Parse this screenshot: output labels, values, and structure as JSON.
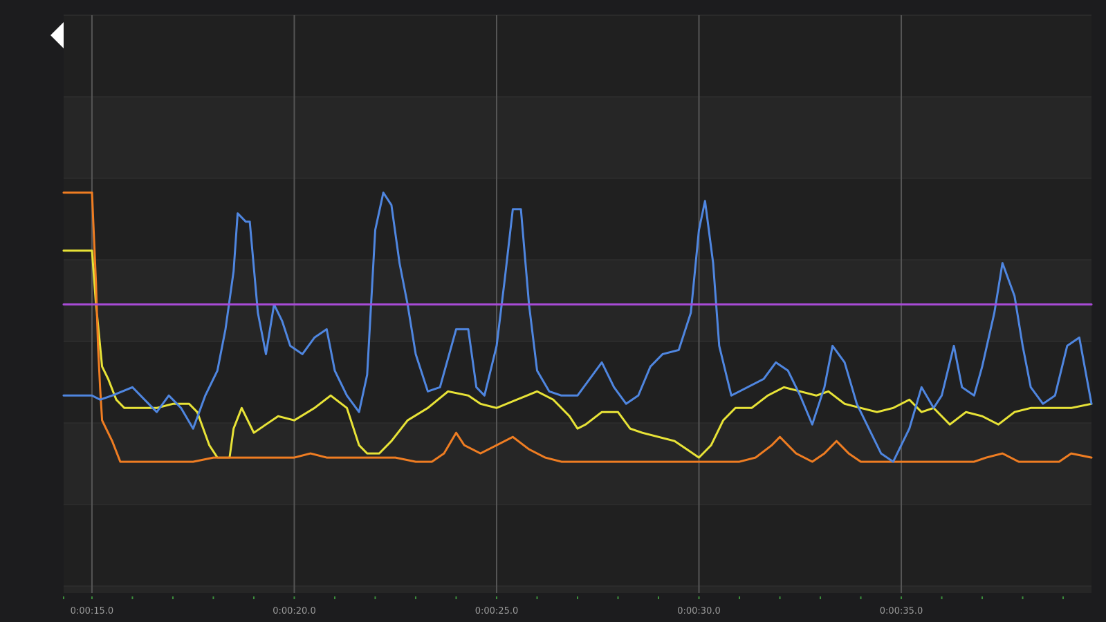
{
  "app": {
    "back_icon": "back-arrow-icon"
  },
  "colors": {
    "background": "#1c1c1e",
    "plot_band_dark": "#202020",
    "plot_band_light": "#262626",
    "vertical_grid": "#555555",
    "horizontal_grid": "#333333",
    "minor_tick": "#3c8f3c",
    "icon": "#ffffff"
  },
  "chart_data": {
    "type": "line",
    "title": "",
    "xlabel": "",
    "ylabel": "",
    "x_unit": "seconds",
    "xlim": [
      14.3,
      39.7
    ],
    "ylim": [
      0,
      100
    ],
    "grid": true,
    "legend": "none",
    "x_ticks": [
      {
        "value": 15,
        "label": "0:00:15.0"
      },
      {
        "value": 20,
        "label": "0:00:20.0"
      },
      {
        "value": 25,
        "label": "0:00:25.0"
      },
      {
        "value": 30,
        "label": "0:00:30.0"
      },
      {
        "value": 35,
        "label": "0:00:35.0"
      }
    ],
    "minor_ticks": [
      14.3,
      15,
      16,
      17,
      18,
      19,
      20,
      21,
      22,
      23,
      24,
      25,
      26,
      27,
      28,
      29,
      30,
      31,
      32,
      33,
      34,
      35,
      36,
      37,
      38,
      39
    ],
    "series": [
      {
        "color": "#e8e337",
        "points": [
          [
            14.3,
            63
          ],
          [
            15.0,
            63
          ],
          [
            15.1,
            50
          ],
          [
            15.2,
            40
          ],
          [
            15.25,
            35
          ],
          [
            15.4,
            32
          ],
          [
            15.6,
            27
          ],
          [
            15.8,
            25
          ],
          [
            16.2,
            25
          ],
          [
            16.6,
            25
          ],
          [
            17.0,
            26
          ],
          [
            17.4,
            26
          ],
          [
            17.6,
            24
          ],
          [
            17.9,
            16
          ],
          [
            18.1,
            13
          ],
          [
            18.4,
            13
          ],
          [
            18.5,
            20
          ],
          [
            18.7,
            25
          ],
          [
            19.0,
            19
          ],
          [
            19.3,
            21
          ],
          [
            19.6,
            23
          ],
          [
            20.0,
            22
          ],
          [
            20.5,
            25
          ],
          [
            20.9,
            28
          ],
          [
            21.3,
            25
          ],
          [
            21.6,
            16
          ],
          [
            21.8,
            14
          ],
          [
            22.1,
            14
          ],
          [
            22.4,
            17
          ],
          [
            22.8,
            22
          ],
          [
            23.3,
            25
          ],
          [
            23.8,
            29
          ],
          [
            24.3,
            28
          ],
          [
            24.6,
            26
          ],
          [
            25.0,
            25
          ],
          [
            25.5,
            27
          ],
          [
            26.0,
            29
          ],
          [
            26.4,
            27
          ],
          [
            26.8,
            23
          ],
          [
            27.0,
            20
          ],
          [
            27.2,
            21
          ],
          [
            27.6,
            24
          ],
          [
            28.0,
            24
          ],
          [
            28.3,
            20
          ],
          [
            28.6,
            19
          ],
          [
            29.0,
            18
          ],
          [
            29.4,
            17
          ],
          [
            29.7,
            15
          ],
          [
            30.0,
            13
          ],
          [
            30.3,
            16
          ],
          [
            30.6,
            22
          ],
          [
            30.9,
            25
          ],
          [
            31.3,
            25
          ],
          [
            31.7,
            28
          ],
          [
            32.1,
            30
          ],
          [
            32.5,
            29
          ],
          [
            32.9,
            28
          ],
          [
            33.2,
            29
          ],
          [
            33.6,
            26
          ],
          [
            34.0,
            25
          ],
          [
            34.4,
            24
          ],
          [
            34.8,
            25
          ],
          [
            35.2,
            27
          ],
          [
            35.5,
            24
          ],
          [
            35.8,
            25
          ],
          [
            36.2,
            21
          ],
          [
            36.6,
            24
          ],
          [
            37.0,
            23
          ],
          [
            37.4,
            21
          ],
          [
            37.8,
            24
          ],
          [
            38.2,
            25
          ],
          [
            38.7,
            25
          ],
          [
            39.2,
            25
          ],
          [
            39.7,
            26
          ]
        ]
      },
      {
        "color": "#ef7d22",
        "points": [
          [
            14.3,
            77
          ],
          [
            15.0,
            77
          ],
          [
            15.1,
            55
          ],
          [
            15.15,
            40
          ],
          [
            15.2,
            30
          ],
          [
            15.25,
            22
          ],
          [
            15.35,
            20
          ],
          [
            15.5,
            17
          ],
          [
            15.7,
            12
          ],
          [
            16.0,
            12
          ],
          [
            16.5,
            12
          ],
          [
            17.0,
            12
          ],
          [
            17.5,
            12
          ],
          [
            18.0,
            13
          ],
          [
            18.5,
            13
          ],
          [
            19.0,
            13
          ],
          [
            19.5,
            13
          ],
          [
            20.0,
            13
          ],
          [
            20.4,
            14
          ],
          [
            20.8,
            13
          ],
          [
            21.2,
            13
          ],
          [
            21.6,
            13
          ],
          [
            22.0,
            13
          ],
          [
            22.5,
            13
          ],
          [
            23.0,
            12
          ],
          [
            23.4,
            12
          ],
          [
            23.7,
            14
          ],
          [
            24.0,
            19
          ],
          [
            24.2,
            16
          ],
          [
            24.6,
            14
          ],
          [
            25.0,
            16
          ],
          [
            25.4,
            18
          ],
          [
            25.8,
            15
          ],
          [
            26.2,
            13
          ],
          [
            26.6,
            12
          ],
          [
            27.0,
            12
          ],
          [
            27.5,
            12
          ],
          [
            28.0,
            12
          ],
          [
            28.5,
            12
          ],
          [
            29.0,
            12
          ],
          [
            29.5,
            12
          ],
          [
            30.0,
            12
          ],
          [
            30.5,
            12
          ],
          [
            31.0,
            12
          ],
          [
            31.4,
            13
          ],
          [
            31.8,
            16
          ],
          [
            32.0,
            18
          ],
          [
            32.4,
            14
          ],
          [
            32.8,
            12
          ],
          [
            33.1,
            14
          ],
          [
            33.4,
            17
          ],
          [
            33.7,
            14
          ],
          [
            34.0,
            12
          ],
          [
            34.5,
            12
          ],
          [
            35.0,
            12
          ],
          [
            35.5,
            12
          ],
          [
            36.0,
            12
          ],
          [
            36.5,
            12
          ],
          [
            36.8,
            12
          ],
          [
            37.1,
            13
          ],
          [
            37.5,
            14
          ],
          [
            37.9,
            12
          ],
          [
            38.3,
            12
          ],
          [
            38.6,
            12
          ],
          [
            38.9,
            12
          ],
          [
            39.2,
            14
          ],
          [
            39.7,
            13
          ]
        ]
      },
      {
        "color": "#4f86e0",
        "points": [
          [
            14.3,
            28
          ],
          [
            15.0,
            28
          ],
          [
            15.2,
            27
          ],
          [
            15.5,
            28
          ],
          [
            16.0,
            30
          ],
          [
            16.3,
            27
          ],
          [
            16.6,
            24
          ],
          [
            16.9,
            28
          ],
          [
            17.2,
            25
          ],
          [
            17.5,
            20
          ],
          [
            17.8,
            28
          ],
          [
            18.1,
            34
          ],
          [
            18.3,
            44
          ],
          [
            18.5,
            58
          ],
          [
            18.6,
            72
          ],
          [
            18.8,
            70
          ],
          [
            18.9,
            70
          ],
          [
            19.1,
            48
          ],
          [
            19.3,
            38
          ],
          [
            19.5,
            50
          ],
          [
            19.7,
            46
          ],
          [
            19.9,
            40
          ],
          [
            20.2,
            38
          ],
          [
            20.5,
            42
          ],
          [
            20.8,
            44
          ],
          [
            21.0,
            34
          ],
          [
            21.3,
            28
          ],
          [
            21.6,
            24
          ],
          [
            21.8,
            33
          ],
          [
            22.0,
            68
          ],
          [
            22.2,
            77
          ],
          [
            22.4,
            74
          ],
          [
            22.6,
            60
          ],
          [
            22.8,
            50
          ],
          [
            23.0,
            38
          ],
          [
            23.3,
            29
          ],
          [
            23.6,
            30
          ],
          [
            24.0,
            44
          ],
          [
            24.3,
            44
          ],
          [
            24.5,
            30
          ],
          [
            24.7,
            28
          ],
          [
            25.0,
            40
          ],
          [
            25.2,
            56
          ],
          [
            25.4,
            73
          ],
          [
            25.6,
            73
          ],
          [
            25.8,
            50
          ],
          [
            26.0,
            34
          ],
          [
            26.3,
            29
          ],
          [
            26.6,
            28
          ],
          [
            27.0,
            28
          ],
          [
            27.3,
            32
          ],
          [
            27.6,
            36
          ],
          [
            27.9,
            30
          ],
          [
            28.2,
            26
          ],
          [
            28.5,
            28
          ],
          [
            28.8,
            35
          ],
          [
            29.1,
            38
          ],
          [
            29.5,
            39
          ],
          [
            29.8,
            48
          ],
          [
            30.0,
            68
          ],
          [
            30.15,
            75
          ],
          [
            30.35,
            60
          ],
          [
            30.5,
            40
          ],
          [
            30.8,
            28
          ],
          [
            31.2,
            30
          ],
          [
            31.6,
            32
          ],
          [
            31.9,
            36
          ],
          [
            32.2,
            34
          ],
          [
            32.5,
            28
          ],
          [
            32.8,
            21
          ],
          [
            33.1,
            30
          ],
          [
            33.3,
            40
          ],
          [
            33.6,
            36
          ],
          [
            33.9,
            26
          ],
          [
            34.2,
            20
          ],
          [
            34.5,
            14
          ],
          [
            34.8,
            12
          ],
          [
            35.2,
            20
          ],
          [
            35.5,
            30
          ],
          [
            35.8,
            25
          ],
          [
            36.0,
            28
          ],
          [
            36.3,
            40
          ],
          [
            36.5,
            30
          ],
          [
            36.8,
            28
          ],
          [
            37.0,
            35
          ],
          [
            37.3,
            48
          ],
          [
            37.5,
            60
          ],
          [
            37.8,
            52
          ],
          [
            38.0,
            40
          ],
          [
            38.2,
            30
          ],
          [
            38.5,
            26
          ],
          [
            38.8,
            28
          ],
          [
            39.1,
            40
          ],
          [
            39.4,
            42
          ],
          [
            39.7,
            26
          ]
        ]
      },
      {
        "color": "#a84bd6",
        "points": [
          [
            14.3,
            50
          ],
          [
            39.7,
            50
          ]
        ]
      }
    ]
  }
}
